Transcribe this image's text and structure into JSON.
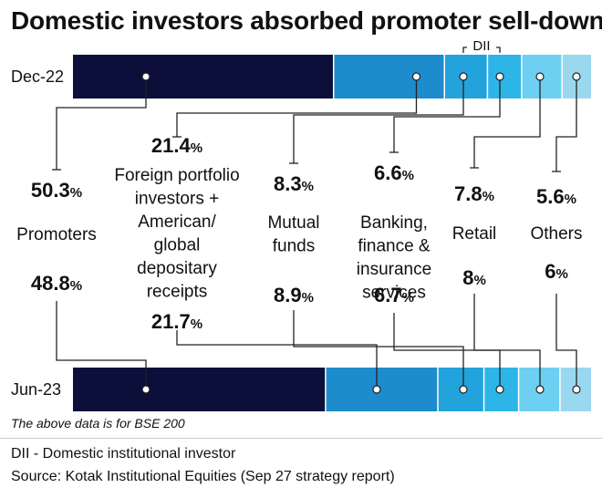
{
  "title": "Domestic investors absorbed promoter sell-downs",
  "note": "The above data is for BSE 200",
  "footnotes": [
    "DII - Domestic institutional investor",
    "Source: Kotak Institutional Equities (Sep 27 strategy report)"
  ],
  "dii_label": "DII",
  "chart_data": {
    "type": "bar",
    "stacked": "horizontal-100",
    "rows": [
      "Dec-22",
      "Jun-23"
    ],
    "categories": [
      "Promoters",
      "Foreign portfolio investors + American/ global depositary receipts",
      "Mutual funds",
      "Banking, finance & insurance services",
      "Retail",
      "Others"
    ],
    "category_lines": [
      [
        "Promoters"
      ],
      [
        "Foreign portfolio",
        "investors +",
        "American/",
        "global",
        "depositary",
        "receipts"
      ],
      [
        "Mutual",
        "funds"
      ],
      [
        "Banking,",
        "finance &",
        "insurance",
        "services"
      ],
      [
        "Retail"
      ],
      [
        "Others"
      ]
    ],
    "series": [
      {
        "row": "Dec-22",
        "values": [
          50.3,
          21.4,
          8.3,
          6.6,
          7.8,
          5.6
        ]
      },
      {
        "row": "Jun-23",
        "values": [
          48.8,
          21.7,
          8.9,
          6.7,
          8,
          6
        ]
      }
    ],
    "value_labels": {
      "Dec-22": [
        "50.3",
        "21.4",
        "8.3",
        "6.6",
        "7.8",
        "5.6"
      ],
      "Jun-23": [
        "48.8",
        "21.7",
        "8.9",
        "6.7",
        "8",
        "6"
      ]
    },
    "unit": "%",
    "dii_group": [
      "Mutual funds",
      "Banking, finance & insurance services"
    ],
    "colors": [
      "#0b0f3a",
      "#1d8ccc",
      "#22a3dc",
      "#2db5e8",
      "#6dd0f2",
      "#9ad8f0"
    ]
  }
}
